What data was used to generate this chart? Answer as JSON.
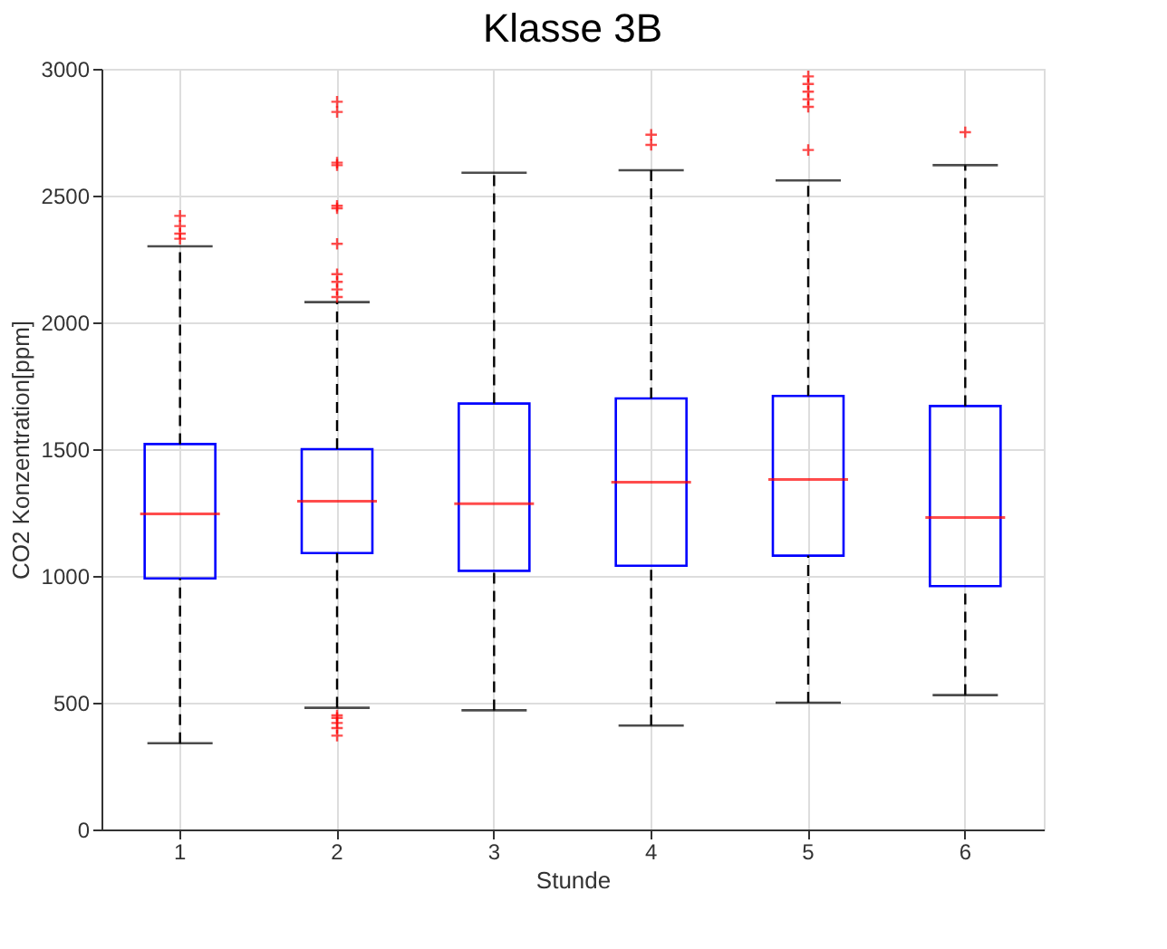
{
  "chart_data": {
    "type": "box",
    "title": "Klasse 3B",
    "xlabel": "Stunde",
    "ylabel": "CO2 Konzentration[ppm]",
    "categories": [
      "1",
      "2",
      "3",
      "4",
      "5",
      "6"
    ],
    "ylim": [
      0,
      3000
    ],
    "yticks": [
      0,
      500,
      1000,
      1500,
      2000,
      2500,
      3000
    ],
    "grid": true,
    "marker": "cross",
    "line_style": "dashed",
    "series": [
      {
        "boxes": [
          {
            "low": 340,
            "q1": 990,
            "median": 1245,
            "q3": 1520,
            "high": 2300,
            "outliers": [
              2330,
              2350,
              2380,
              2420
            ]
          },
          {
            "low": 480,
            "q1": 1090,
            "median": 1295,
            "q3": 1500,
            "high": 2080,
            "outliers": [
              370,
              400,
              420,
              440,
              450,
              2100,
              2130,
              2160,
              2190,
              2310,
              2450,
              2460,
              2620,
              2630,
              2830,
              2870
            ]
          },
          {
            "low": 470,
            "q1": 1020,
            "median": 1285,
            "q3": 1680,
            "high": 2590
          },
          {
            "low": 410,
            "q1": 1040,
            "median": 1370,
            "q3": 1700,
            "high": 2600,
            "outliers": [
              2700,
              2740
            ]
          },
          {
            "low": 500,
            "q1": 1080,
            "median": 1380,
            "q3": 1710,
            "high": 2560,
            "outliers": [
              2680,
              2850,
              2880,
              2910,
              2940,
              2970
            ]
          },
          {
            "low": 530,
            "q1": 960,
            "median": 1230,
            "q3": 1670,
            "high": 2620,
            "outliers": [
              2750
            ]
          }
        ]
      }
    ]
  }
}
